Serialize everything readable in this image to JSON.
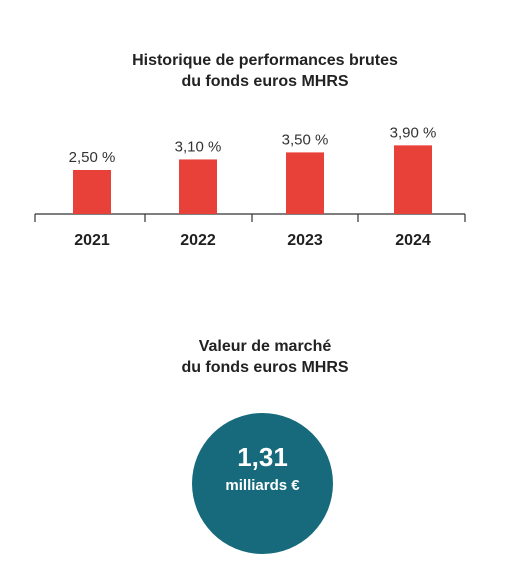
{
  "chart_data": {
    "type": "bar",
    "title_lines": [
      "Historique de performances brutes",
      "du fonds euros MHRS"
    ],
    "categories": [
      "2021",
      "2022",
      "2023",
      "2024"
    ],
    "values": [
      2.5,
      3.1,
      3.5,
      3.9
    ],
    "value_labels": [
      "2,50 %",
      "3,10 %",
      "3,50 %",
      "3,90 %"
    ],
    "bar_color": "#e8413a",
    "ylim": [
      0,
      4.5
    ],
    "grid": false,
    "y_axis": "hidden"
  },
  "market": {
    "title_lines": [
      "Valeur de marché",
      "du fonds euros MHRS"
    ],
    "value": "1,31",
    "unit": "milliards €",
    "circle_color": "#166a7c"
  }
}
